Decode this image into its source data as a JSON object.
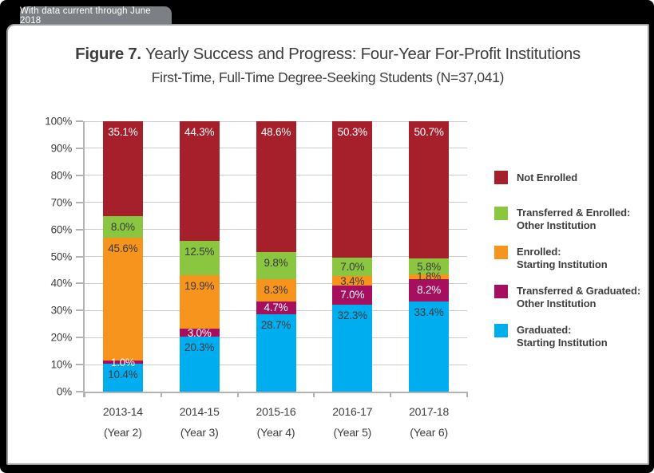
{
  "banner": {
    "text": "With data current through June 2018"
  },
  "title": {
    "figure_label": "Figure 7.",
    "text": "Yearly Success and Progress: Four-Year For-Profit Institutions",
    "subtitle": "First-Time, Full-Time Degree-Seeking Students (N=37,041)"
  },
  "colors": {
    "frame_bg": "#000000",
    "tab_bg": "#7C7F83",
    "tab_text": "#FFFFFF",
    "panel_border": "#9E9E9E",
    "grid": "#CBCBCB",
    "axis": "#B3B3B3",
    "text": "#3E3E40",
    "not_enrolled_red": "#A6202B",
    "transferred_enrolled_green": "#8AC640",
    "enrolled_orange": "#F7941E",
    "transferred_graduated_purple": "#A50F5D",
    "graduated_blue": "#00AEEF"
  },
  "chart_data": {
    "type": "bar",
    "stacked": true,
    "stacked_percent": true,
    "title": "Figure 7. Yearly Success and Progress: Four-Year For-Profit Institutions",
    "subtitle": "First-Time, Full-Time Degree-Seeking Students (N=37,041)",
    "categories": [
      "2013-14",
      "2014-15",
      "2015-16",
      "2016-17",
      "2017-18"
    ],
    "category_sublabels": [
      "(Year 2)",
      "(Year 3)",
      "(Year 4)",
      "(Year 5)",
      "(Year 6)"
    ],
    "series": [
      {
        "name": "Graduated: Starting Institution",
        "color": "#00AEEF",
        "label_color": "#3A3A3C",
        "values": [
          10.4,
          20.3,
          28.7,
          32.3,
          33.4
        ]
      },
      {
        "name": "Transferred & Graduated: Other Institution",
        "color": "#A50F5D",
        "label_color": "#FFFFFF",
        "values": [
          1.0,
          3.0,
          4.7,
          7.0,
          8.2
        ]
      },
      {
        "name": "Enrolled: Starting Institution",
        "color": "#F7941E",
        "label_color": "#3A3A3C",
        "values": [
          45.6,
          19.9,
          8.3,
          3.4,
          1.8
        ]
      },
      {
        "name": "Transferred & Enrolled: Other Institution",
        "color": "#8AC640",
        "label_color": "#3A3A3C",
        "values": [
          8.0,
          12.5,
          9.8,
          7.0,
          5.8
        ]
      },
      {
        "name": "Not Enrolled",
        "color": "#A6202B",
        "label_color": "#FFFFFF",
        "values": [
          35.1,
          44.3,
          48.6,
          50.3,
          50.7
        ]
      }
    ],
    "legend": [
      {
        "lines": [
          "Not Enrolled"
        ],
        "color": "#A6202B"
      },
      {
        "lines": [
          "Transferred & Enrolled:",
          "Other Institution"
        ],
        "color": "#8AC640"
      },
      {
        "lines": [
          "Enrolled:",
          "Starting Institution"
        ],
        "color": "#F7941E"
      },
      {
        "lines": [
          "Transferred & Graduated:",
          "Other Institution"
        ],
        "color": "#A50F5D"
      },
      {
        "lines": [
          "Graduated:",
          "Starting Institution"
        ],
        "color": "#00AEEF"
      }
    ],
    "legend_position": "right",
    "grid": true,
    "value_suffix": "%",
    "ylabel": "",
    "xlabel": "",
    "ylim": [
      0,
      100
    ],
    "ytick_step": 10,
    "y_tick_labels": [
      "0%",
      "10%",
      "20%",
      "30%",
      "40%",
      "50%",
      "60%",
      "70%",
      "80%",
      "90%",
      "100%"
    ]
  }
}
